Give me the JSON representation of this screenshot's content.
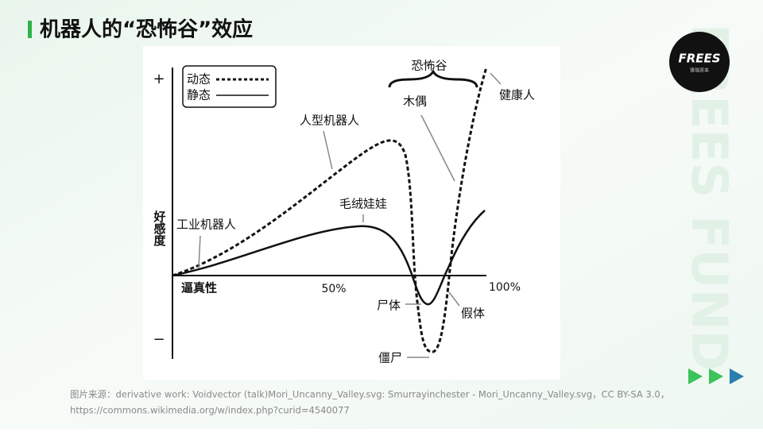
{
  "header": {
    "title": "机器人的“恐怖谷”效应"
  },
  "logo": {
    "name": "FREES",
    "subtitle": "锋瑞资本",
    "watermark": "FREES FUND"
  },
  "diagram": {
    "axes": {
      "plus": "+",
      "minus": "−",
      "y_label": "好感度",
      "x_label": "逼真性",
      "x_mid": "50%",
      "x_end": "100%"
    },
    "legend": {
      "moving": "动态",
      "still": "静态"
    },
    "labels": {
      "valley": "恐怖谷",
      "puppet": "木偶",
      "healthy": "健康人",
      "humanoid": "人型机器人",
      "stuffed": "毛绒娃娃",
      "industrial": "工业机器人",
      "corpse": "尸体",
      "prosthetic": "假体",
      "zombie": "僵尸"
    }
  },
  "caption": {
    "line1": "图片来源：derivative work: Voidvector (talk)Mori_Uncanny_Valley.svg: Smurrayinchester - Mori_Uncanny_Valley.svg，CC BY-SA 3.0，",
    "line2": "https://commons.wikimedia.org/w/index.php?curid=4540077"
  }
}
